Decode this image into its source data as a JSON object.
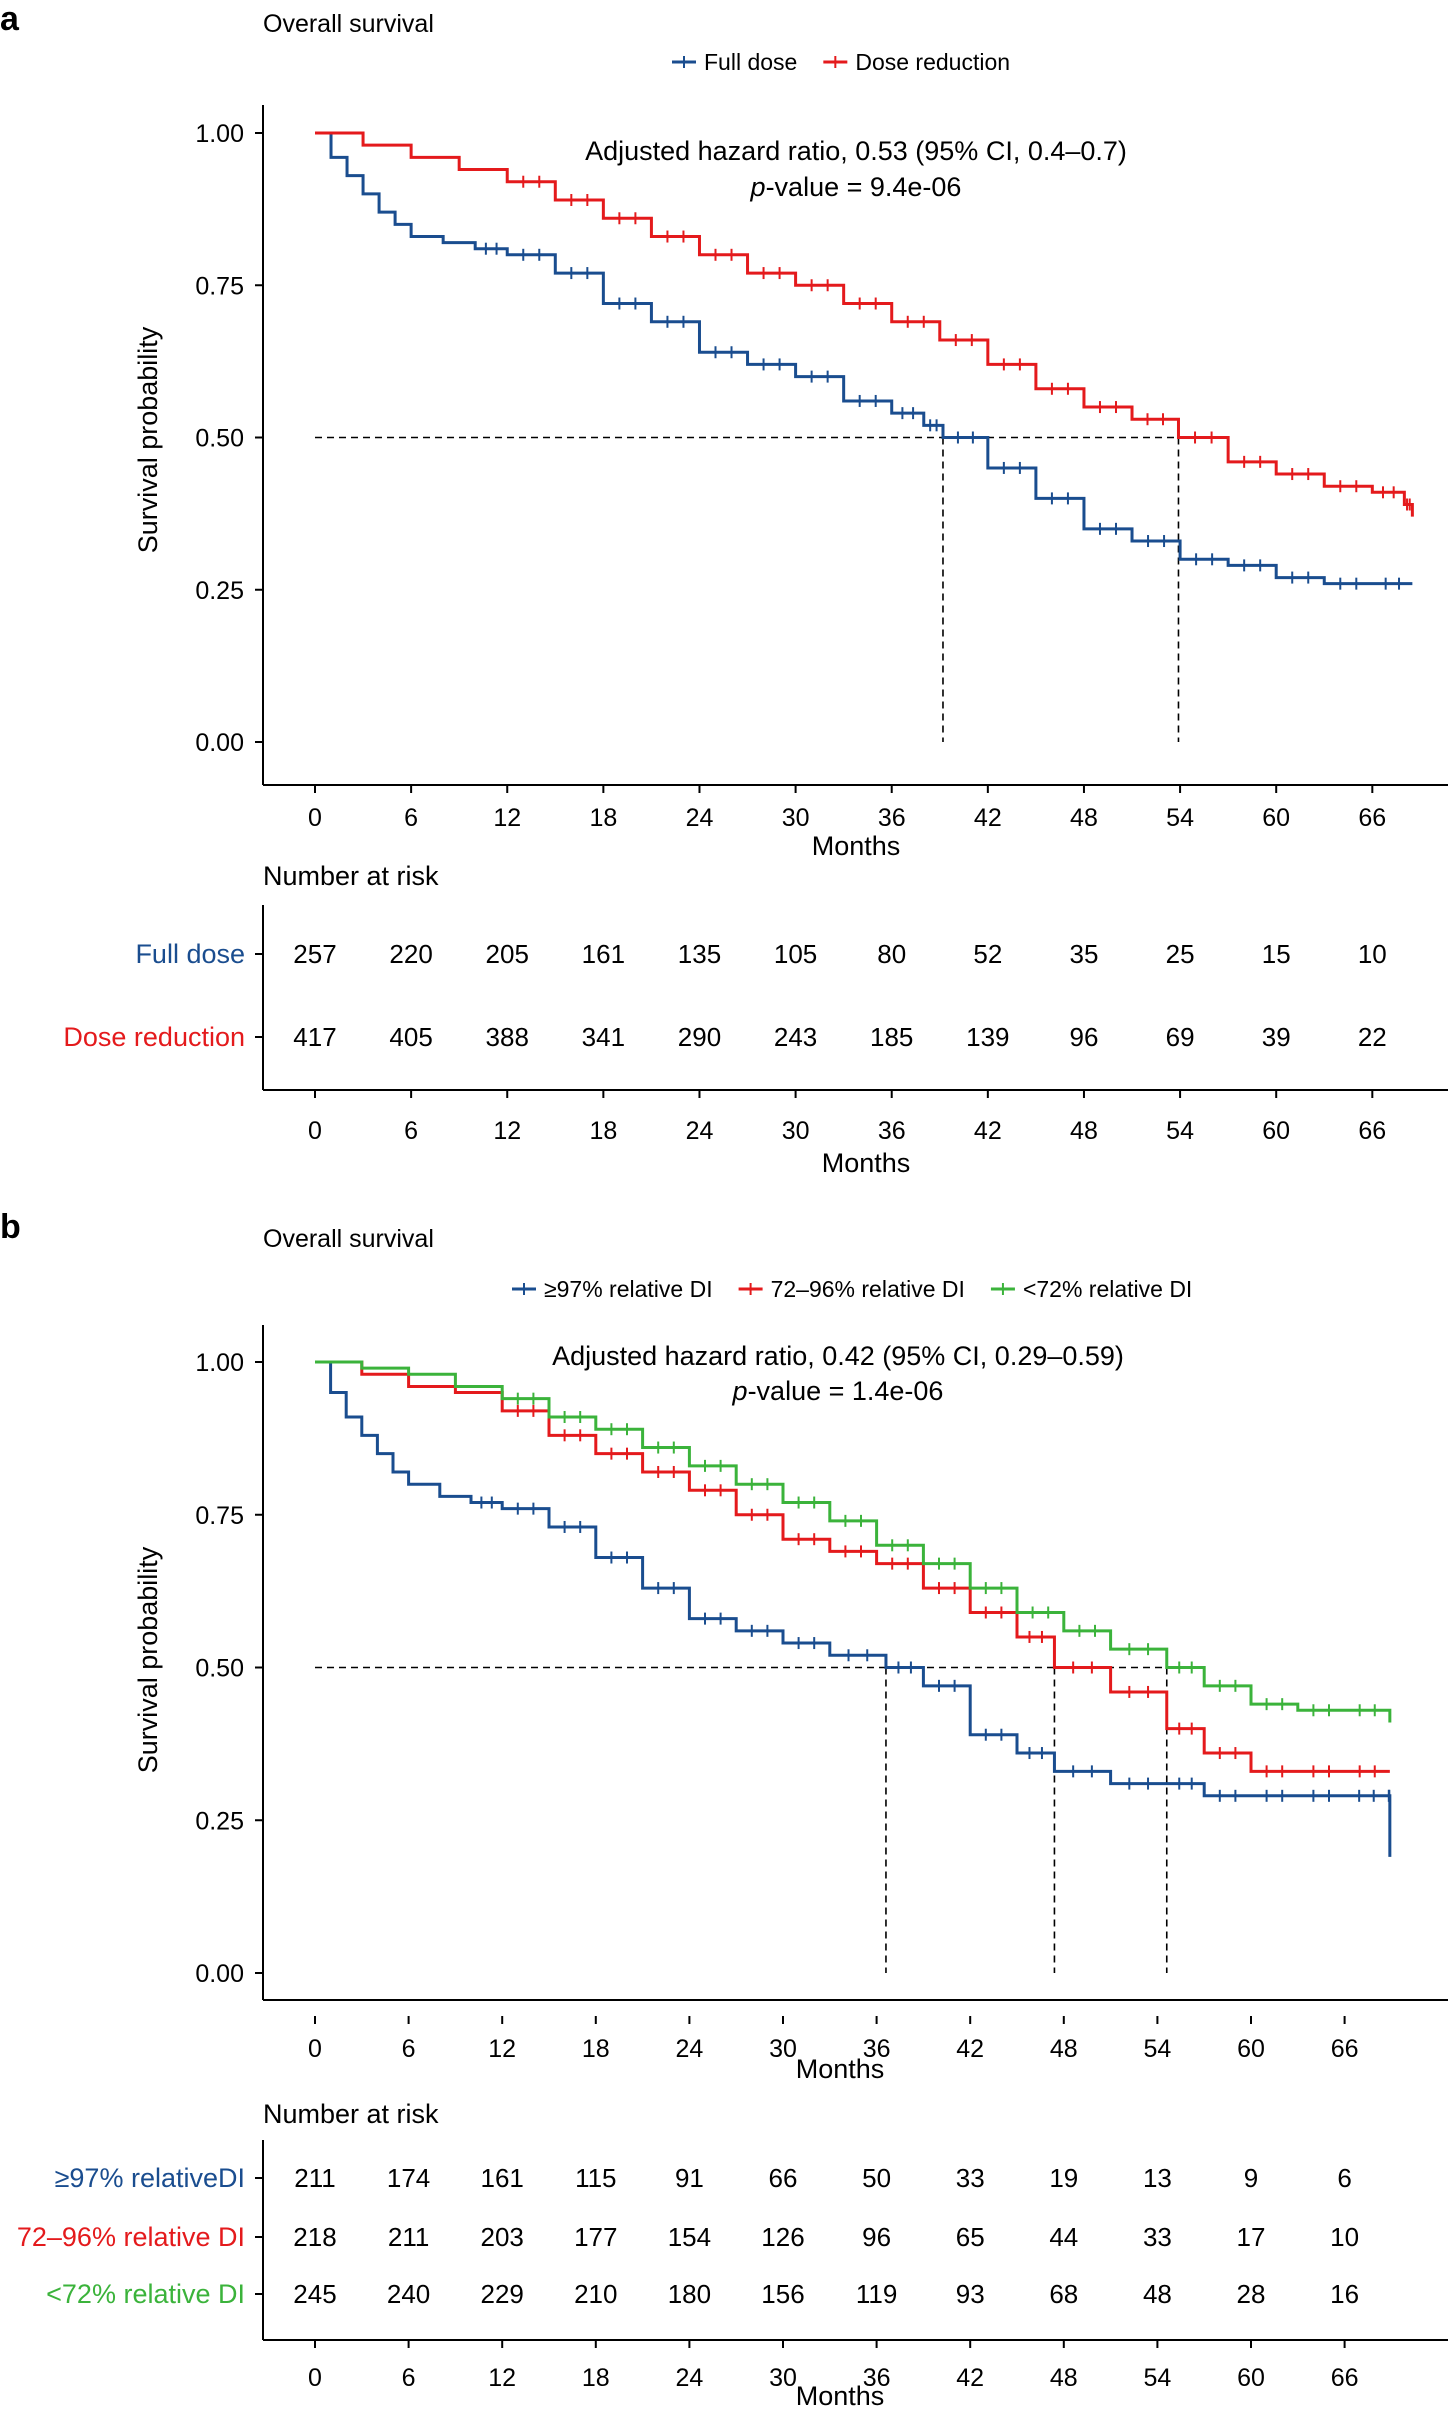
{
  "panels": [
    {
      "letter": "a",
      "title": "Overall survival",
      "hr_text": "Adjusted hazard ratio, 0.53 (95% CI, 0.4–0.7)",
      "p_label": "p",
      "p_rest": "-value = 9.4e-06",
      "risk_title": "Number at risk"
    },
    {
      "letter": "b",
      "title": "Overall survival",
      "hr_text": "Adjusted hazard ratio, 0.42 (95% CI, 0.29–0.59)",
      "p_label": "p",
      "p_rest": "-value = 1.4e-06",
      "risk_title": "Number at risk"
    }
  ],
  "chart_data": [
    {
      "type": "line",
      "subtype": "kaplan-meier",
      "title": "Overall survival",
      "xlabel": "Months",
      "ylabel": "Survival probability",
      "xlim": [
        -1,
        69
      ],
      "ylim": [
        0,
        1
      ],
      "xticks": [
        0,
        6,
        12,
        18,
        24,
        30,
        36,
        42,
        48,
        54,
        60,
        66
      ],
      "yticks": [
        "0.00",
        "0.25",
        "0.50",
        "0.75",
        "1.00"
      ],
      "median_line_y": 0.5,
      "medians": [
        39.2,
        53.9
      ],
      "legend_position": "top",
      "series": [
        {
          "name": "Full dose",
          "color": "#1a4d8f",
          "x": [
            0,
            1,
            2,
            3,
            4,
            5,
            6,
            8,
            10,
            12,
            15,
            18,
            21,
            24,
            27,
            30,
            33,
            36,
            38,
            39.2,
            42,
            45,
            48,
            51,
            54,
            57,
            60,
            63,
            66,
            68.5
          ],
          "y": [
            1.0,
            0.96,
            0.93,
            0.9,
            0.87,
            0.85,
            0.83,
            0.82,
            0.81,
            0.8,
            0.77,
            0.72,
            0.69,
            0.64,
            0.62,
            0.6,
            0.56,
            0.54,
            0.52,
            0.5,
            0.45,
            0.4,
            0.35,
            0.33,
            0.3,
            0.29,
            0.27,
            0.26,
            0.26,
            0.26
          ]
        },
        {
          "name": "Dose reduction",
          "color": "#e41a1c",
          "x": [
            0,
            3,
            6,
            9,
            12,
            15,
            18,
            21,
            24,
            27,
            30,
            33,
            36,
            39,
            42,
            45,
            48,
            51,
            53.9,
            57,
            60,
            63,
            66,
            68,
            68.5
          ],
          "y": [
            1.0,
            0.98,
            0.96,
            0.94,
            0.92,
            0.89,
            0.86,
            0.83,
            0.8,
            0.77,
            0.75,
            0.72,
            0.69,
            0.66,
            0.62,
            0.58,
            0.55,
            0.53,
            0.5,
            0.46,
            0.44,
            0.42,
            0.41,
            0.39,
            0.37
          ]
        }
      ],
      "risk_table": {
        "title": "Number at risk",
        "times": [
          0,
          6,
          12,
          18,
          24,
          30,
          36,
          42,
          48,
          54,
          60,
          66
        ],
        "rows": [
          {
            "label": "Full dose",
            "color": "#1a4d8f",
            "counts": [
              257,
              220,
              205,
              161,
              135,
              105,
              80,
              52,
              35,
              25,
              15,
              10
            ]
          },
          {
            "label": "Dose reduction",
            "color": "#e41a1c",
            "counts": [
              417,
              405,
              388,
              341,
              290,
              243,
              185,
              139,
              96,
              69,
              39,
              22
            ]
          }
        ]
      }
    },
    {
      "type": "line",
      "subtype": "kaplan-meier",
      "title": "Overall survival",
      "xlabel": "Months",
      "ylabel": "Survival probability",
      "xlim": [
        -1,
        70
      ],
      "ylim": [
        0,
        1
      ],
      "xticks": [
        0,
        6,
        12,
        18,
        24,
        30,
        36,
        42,
        48,
        54,
        60,
        66
      ],
      "yticks": [
        "0.00",
        "0.25",
        "0.50",
        "0.75",
        "1.00"
      ],
      "median_line_y": 0.5,
      "medians": [
        36.6,
        47.4,
        54.6
      ],
      "legend_position": "top",
      "series": [
        {
          "name": "≥97% relative DI",
          "color": "#1a4d8f",
          "x": [
            0,
            1,
            2,
            3,
            4,
            5,
            6,
            8,
            10,
            12,
            15,
            18,
            21,
            24,
            27,
            30,
            33,
            36.6,
            39,
            42,
            45,
            47.4,
            51,
            54.6,
            57,
            60,
            63,
            66,
            68.8,
            68.9
          ],
          "y": [
            1.0,
            0.95,
            0.91,
            0.88,
            0.85,
            0.82,
            0.8,
            0.78,
            0.77,
            0.76,
            0.73,
            0.68,
            0.63,
            0.58,
            0.56,
            0.54,
            0.52,
            0.5,
            0.47,
            0.39,
            0.36,
            0.33,
            0.31,
            0.31,
            0.29,
            0.29,
            0.29,
            0.29,
            0.29,
            0.19
          ]
        },
        {
          "name": "72–96% relative DI",
          "color": "#e41a1c",
          "x": [
            0,
            3,
            6,
            9,
            12,
            15,
            18,
            21,
            24,
            27,
            30,
            33,
            36,
            39,
            42,
            45,
            47.4,
            51,
            54.6,
            57,
            60,
            63,
            66,
            68.9
          ],
          "y": [
            1.0,
            0.98,
            0.96,
            0.95,
            0.92,
            0.88,
            0.85,
            0.82,
            0.79,
            0.75,
            0.71,
            0.69,
            0.67,
            0.63,
            0.59,
            0.55,
            0.5,
            0.46,
            0.4,
            0.36,
            0.33,
            0.33,
            0.33,
            0.33
          ]
        },
        {
          "name": "<72% relative DI",
          "color": "#3bb33b",
          "x": [
            0,
            3,
            6,
            9,
            12,
            15,
            18,
            21,
            24,
            27,
            30,
            33,
            36,
            39,
            42,
            45,
            48,
            51,
            54.6,
            57,
            60,
            63,
            66,
            68.9
          ],
          "y": [
            1.0,
            0.99,
            0.98,
            0.96,
            0.94,
            0.91,
            0.89,
            0.86,
            0.83,
            0.8,
            0.77,
            0.74,
            0.7,
            0.67,
            0.63,
            0.59,
            0.56,
            0.53,
            0.5,
            0.47,
            0.44,
            0.43,
            0.43,
            0.41
          ]
        }
      ],
      "risk_table": {
        "title": "Number at risk",
        "times": [
          0,
          6,
          12,
          18,
          24,
          30,
          36,
          42,
          48,
          54,
          60,
          66
        ],
        "rows": [
          {
            "label": "≥97% relativeDI",
            "color": "#1a4d8f",
            "counts": [
              211,
              174,
              161,
              115,
              91,
              66,
              50,
              33,
              19,
              13,
              9,
              6
            ]
          },
          {
            "label": "72–96% relative DI",
            "color": "#e41a1c",
            "counts": [
              218,
              211,
              203,
              177,
              154,
              126,
              96,
              65,
              44,
              33,
              17,
              10
            ]
          },
          {
            "label": "<72% relative DI",
            "color": "#3bb33b",
            "counts": [
              245,
              240,
              229,
              210,
              180,
              156,
              119,
              93,
              68,
              48,
              28,
              16
            ]
          }
        ]
      }
    }
  ]
}
